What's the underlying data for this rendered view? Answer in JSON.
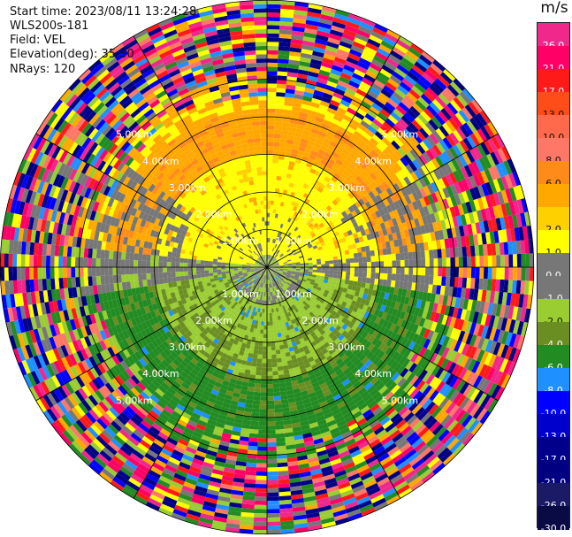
{
  "header": {
    "start_time": "Start time: 2023/08/11 13:24:28",
    "instrument": "WLS200s-181",
    "field": "Field: VEL",
    "elevation": "Elevation(deg): 35.30",
    "nrays": "NRays: 120"
  },
  "range_rings": {
    "labels": [
      "1.00km",
      "2.00km",
      "3.00km",
      "4.00km",
      "5.00km"
    ],
    "ring_km": [
      1,
      2,
      3,
      4,
      5
    ]
  },
  "colorbar": {
    "unit": "m/s",
    "bins": [
      {
        "label": "26.0",
        "color": "#f0288c"
      },
      {
        "label": "21.0",
        "color": "#ff0066"
      },
      {
        "label": "17.0",
        "color": "#ff1a1a"
      },
      {
        "label": "13.0",
        "color": "#ff4d1a"
      },
      {
        "label": "10.0",
        "color": "#ff6a4d"
      },
      {
        "label": "8.0",
        "color": "#ff7766"
      },
      {
        "label": "6.0",
        "color": "#ff8c1a"
      },
      {
        "label": "",
        "color": "#ffa800"
      },
      {
        "label": "2.0",
        "color": "#ffd000"
      },
      {
        "label": "1.0",
        "color": "#ffff00"
      },
      {
        "label": "0.0",
        "color": "#777777"
      },
      {
        "label": "-1.0",
        "color": "#777777"
      },
      {
        "label": "-2.0",
        "color": "#9acd32"
      },
      {
        "label": "-4.0",
        "color": "#6b8e23"
      },
      {
        "label": "-6.0",
        "color": "#228b22"
      },
      {
        "label": "-8.0",
        "color": "#1e90ff"
      },
      {
        "label": "-10.0",
        "color": "#0000ff"
      },
      {
        "label": "-13.0",
        "color": "#0000cd"
      },
      {
        "label": "-17.0",
        "color": "#00008b"
      },
      {
        "label": "-21.0",
        "color": "#000080"
      },
      {
        "label": "-26.0",
        "color": "#1a1a66"
      },
      {
        "label": "-30.0",
        "color": "#0a0a44"
      }
    ]
  },
  "palette": {
    "noise": [
      "#f0288c",
      "#ff0066",
      "#ff1a1a",
      "#ff7766",
      "#ffa800",
      "#ffff00",
      "#777777",
      "#9acd32",
      "#228b22",
      "#1e90ff",
      "#0000ff",
      "#00008b",
      "#000080"
    ]
  }
}
